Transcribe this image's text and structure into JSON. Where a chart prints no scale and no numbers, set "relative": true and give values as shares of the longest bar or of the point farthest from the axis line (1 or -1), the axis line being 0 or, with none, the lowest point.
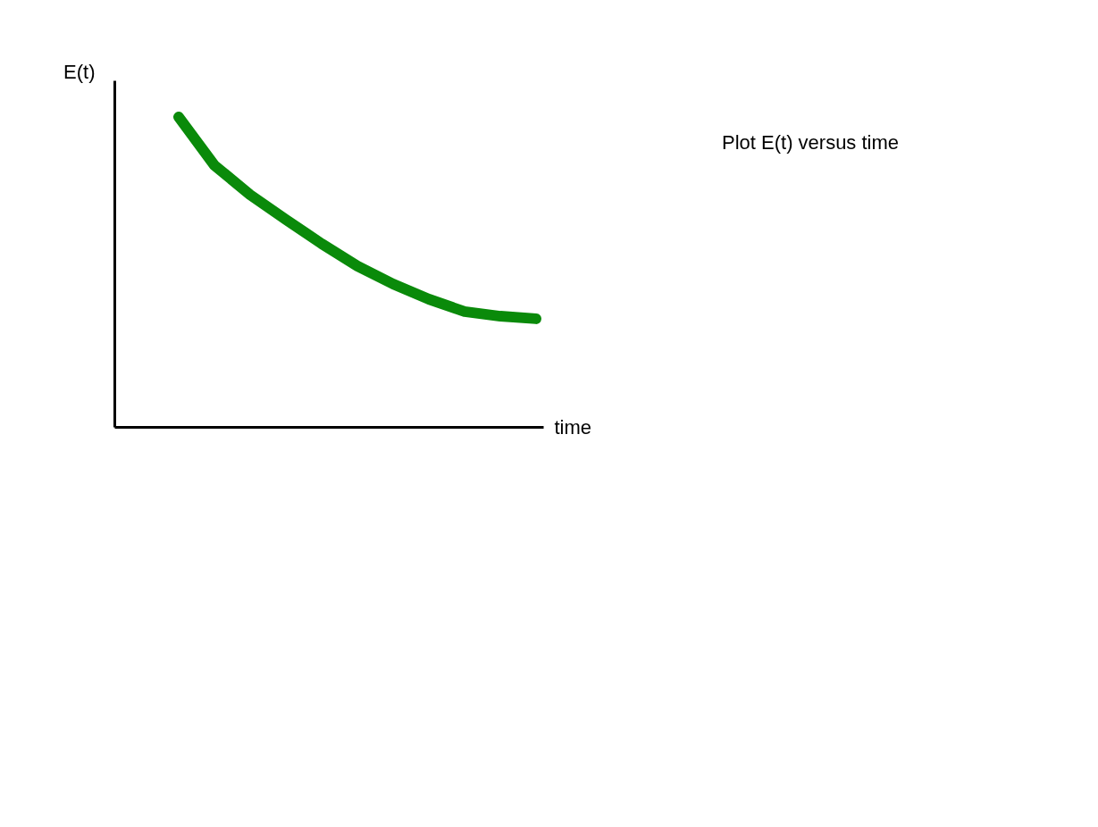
{
  "chart_data": {
    "type": "line",
    "relative": true,
    "xlabel": "time",
    "ylabel": "E(t)",
    "categories": [
      null,
      null,
      null,
      null,
      null,
      null,
      null,
      null,
      null,
      null,
      null
    ],
    "series": [
      {
        "color": "#0a8a0a",
        "values": [
          1,
          0.844,
          0.749,
          0.669,
          0.591,
          0.519,
          0.461,
          0.412,
          0.372,
          0.357,
          0.349
        ]
      }
    ],
    "annotations": [
      "Plot E(t) versus time"
    ],
    "marker": "none",
    "line_style": "solid",
    "grid": false
  }
}
